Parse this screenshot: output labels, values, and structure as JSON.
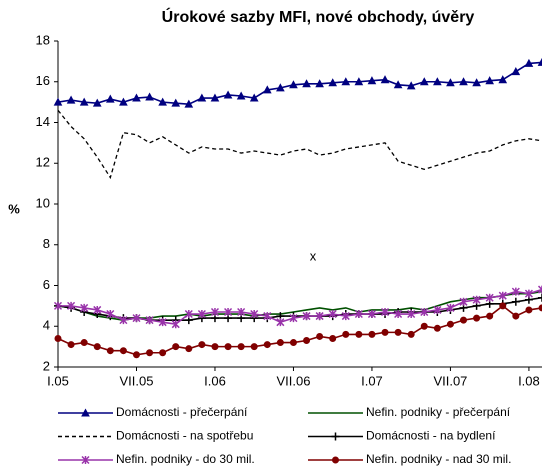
{
  "chart_data": {
    "type": "line",
    "title": "Úrokové sazby MFI, nové obchody, úvěry",
    "y_label": "%",
    "annotation": "x",
    "categories": [
      "I.05",
      null,
      null,
      null,
      null,
      null,
      "VII.05",
      null,
      null,
      null,
      null,
      null,
      "I.06",
      null,
      null,
      null,
      null,
      null,
      "VII.06",
      null,
      null,
      null,
      null,
      null,
      "I.07",
      null,
      null,
      null,
      null,
      null,
      "VII.07",
      null,
      null,
      null,
      null,
      null,
      "I.08",
      null
    ],
    "ylim": [
      2,
      18
    ],
    "yticks": [
      2,
      4,
      6,
      8,
      10,
      12,
      14,
      16,
      18
    ],
    "grid": false,
    "series": [
      {
        "name": "Domácnosti - přečerpání",
        "color": "#000080",
        "marker": "triangle",
        "dash": "solid",
        "values": [
          15.0,
          15.1,
          15.0,
          14.95,
          15.15,
          15.0,
          15.2,
          15.25,
          15.0,
          14.95,
          14.9,
          15.2,
          15.2,
          15.35,
          15.3,
          15.2,
          15.6,
          15.7,
          15.85,
          15.9,
          15.9,
          15.95,
          16.0,
          16.0,
          16.05,
          16.1,
          15.85,
          15.8,
          16.0,
          16.0,
          15.95,
          16.0,
          15.95,
          16.05,
          16.1,
          16.5,
          16.9,
          16.95
        ]
      },
      {
        "name": "Nefin. podniky - přečerpání",
        "color": "#005000",
        "marker": "none",
        "dash": "solid",
        "values": [
          5.0,
          4.9,
          4.7,
          4.5,
          4.4,
          4.3,
          4.4,
          4.4,
          4.5,
          4.5,
          4.6,
          4.5,
          4.6,
          4.6,
          4.6,
          4.5,
          4.6,
          4.6,
          4.7,
          4.8,
          4.9,
          4.8,
          4.9,
          4.7,
          4.8,
          4.8,
          4.8,
          4.9,
          4.8,
          5.0,
          5.2,
          5.3,
          5.4,
          5.4,
          5.5,
          5.6,
          5.6,
          5.7
        ]
      },
      {
        "name": "Domácnosti - na spotřebu",
        "color": "#000000",
        "marker": "none",
        "dash": "dashed",
        "values": [
          14.6,
          13.8,
          13.2,
          12.3,
          11.3,
          13.5,
          13.4,
          13.0,
          13.3,
          12.9,
          12.5,
          12.8,
          12.7,
          12.7,
          12.5,
          12.6,
          12.5,
          12.4,
          12.6,
          12.7,
          12.4,
          12.5,
          12.7,
          12.8,
          12.9,
          13.0,
          12.1,
          11.9,
          11.7,
          11.9,
          12.1,
          12.3,
          12.5,
          12.6,
          12.9,
          13.1,
          13.2,
          13.1
        ]
      },
      {
        "name": "Domácnosti - na bydlení",
        "color": "#000000",
        "marker": "plus",
        "dash": "solid",
        "values": [
          5.0,
          4.9,
          4.7,
          4.6,
          4.5,
          4.4,
          4.4,
          4.3,
          4.3,
          4.3,
          4.3,
          4.4,
          4.4,
          4.4,
          4.4,
          4.4,
          4.4,
          4.5,
          4.5,
          4.5,
          4.5,
          4.5,
          4.6,
          4.6,
          4.6,
          4.6,
          4.7,
          4.7,
          4.7,
          4.7,
          4.8,
          4.9,
          5.0,
          5.1,
          5.1,
          5.2,
          5.3,
          5.4
        ]
      },
      {
        "name": "Nefin. podniky - do 30 mil.",
        "color": "#9933aa",
        "marker": "asterisk",
        "dash": "solid",
        "values": [
          5.0,
          5.0,
          4.9,
          4.8,
          4.6,
          4.3,
          4.4,
          4.3,
          4.2,
          4.1,
          4.6,
          4.6,
          4.7,
          4.7,
          4.7,
          4.6,
          4.5,
          4.2,
          4.4,
          4.5,
          4.5,
          4.6,
          4.5,
          4.6,
          4.6,
          4.7,
          4.6,
          4.6,
          4.7,
          4.8,
          4.9,
          5.2,
          5.3,
          5.4,
          5.5,
          5.7,
          5.6,
          5.8
        ]
      },
      {
        "name": "Nefin. podniky - nad 30 mil.",
        "color": "#800000",
        "marker": "circle",
        "dash": "solid",
        "values": [
          3.4,
          3.1,
          3.2,
          3.0,
          2.8,
          2.8,
          2.6,
          2.7,
          2.7,
          3.0,
          2.9,
          3.1,
          3.0,
          3.0,
          3.0,
          3.0,
          3.1,
          3.2,
          3.2,
          3.3,
          3.5,
          3.4,
          3.6,
          3.6,
          3.6,
          3.7,
          3.7,
          3.6,
          4.0,
          3.9,
          4.1,
          4.3,
          4.4,
          4.5,
          5.0,
          4.5,
          4.8,
          4.9
        ]
      }
    ]
  }
}
